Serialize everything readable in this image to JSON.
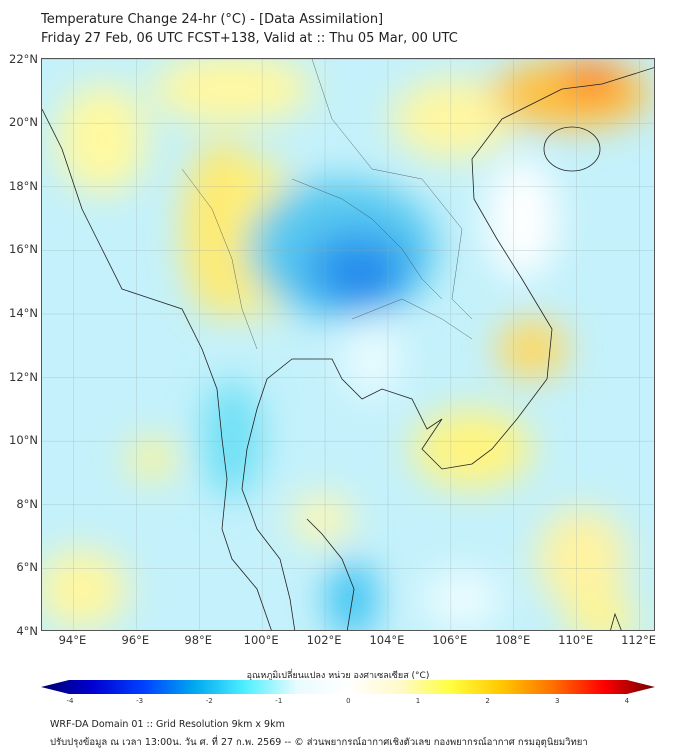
{
  "header": {
    "title": "Temperature Change 24-hr (°C) - [Data Assimilation]",
    "subtitle": "Friday 27 Feb, 06 UTC FCST+138, Valid at :: Thu 05 Mar, 00 UTC"
  },
  "map": {
    "lon_labels": [
      "94°E",
      "96°E",
      "98°E",
      "100°E",
      "102°E",
      "104°E",
      "106°E",
      "108°E",
      "110°E",
      "112°E"
    ],
    "lat_labels": [
      "22°N",
      "20°N",
      "18°N",
      "16°N",
      "14°N",
      "12°N",
      "10°N",
      "8°N",
      "6°N",
      "4°N"
    ]
  },
  "colorbar": {
    "title": "อุณหภูมิเปลี่ยนแปลง หน่วย องศาเซลเซียส (°C)",
    "ticks": [
      "-4",
      "-3",
      "-2",
      "-1",
      "0",
      "1",
      "2",
      "3",
      "4"
    ],
    "min": -4,
    "max": 4,
    "colors": [
      "#00006e",
      "#0000d0",
      "#0040ff",
      "#00a8f0",
      "#50f0ff",
      "#e8fbff",
      "#ffffff",
      "#fffacc",
      "#ffff40",
      "#ffc800",
      "#ff7000",
      "#ff0000",
      "#700000"
    ]
  },
  "footer": {
    "line1": "WRF-DA Domain 01 :: Grid Resolution 9km x 9km",
    "line2": "ปรับปรุงข้อมูล ณ เวลา 13:00น. วัน ศ. ที่ 27 ก.พ. 2569 -- © ส่วนพยากรณ์อากาศเชิงตัวเลข กองพยากรณ์อากาศ กรมอุตุนิยมวิทยา"
  }
}
